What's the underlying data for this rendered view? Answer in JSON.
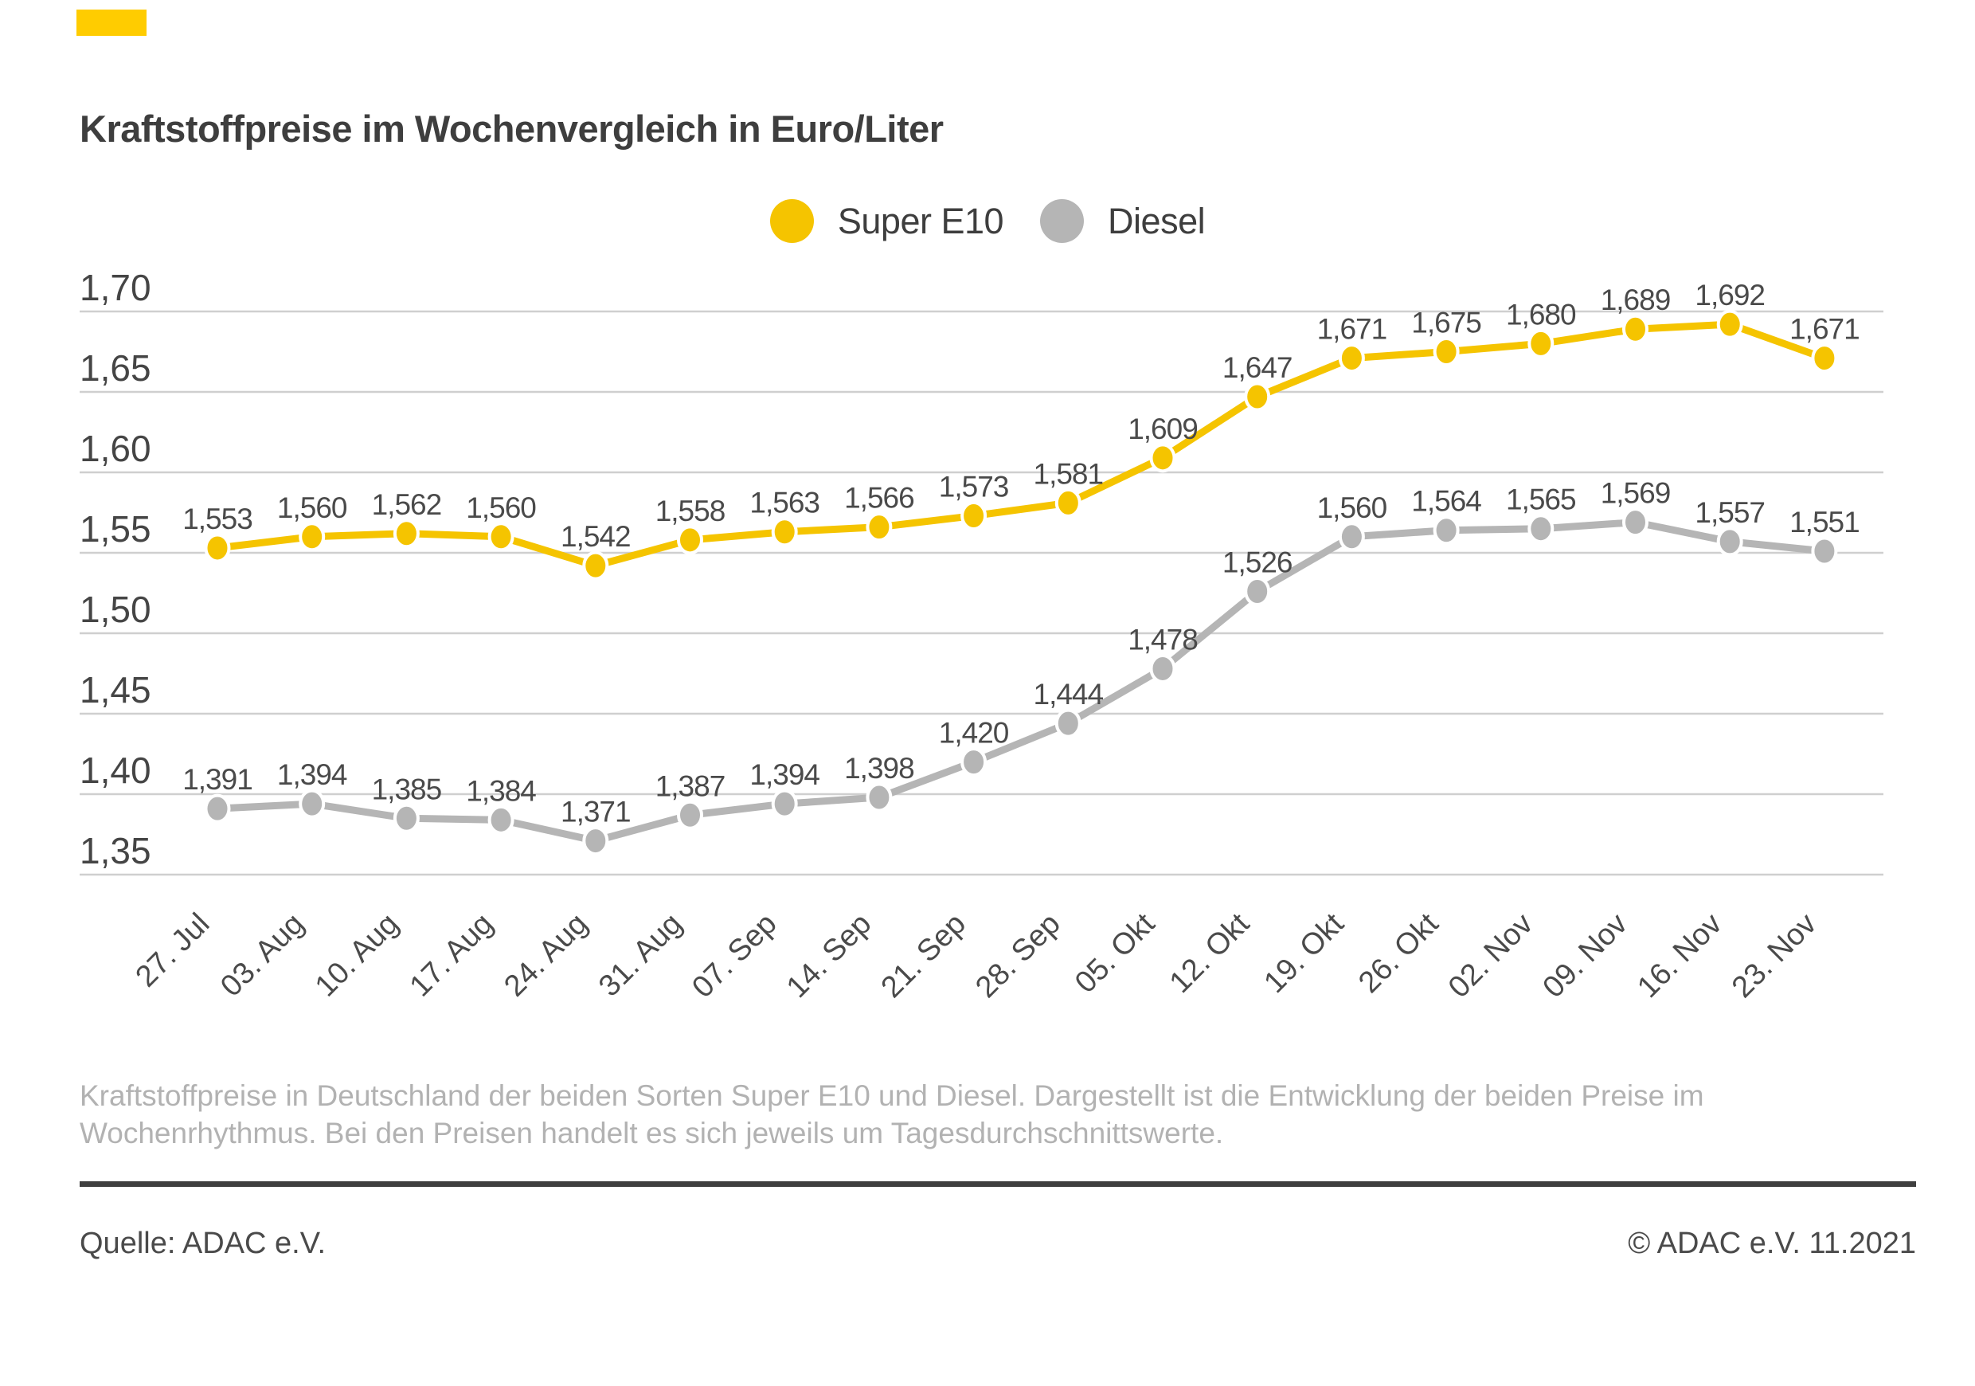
{
  "accent_bar_color": "#FFCC00",
  "header": {
    "title": "Kraftstoffpreise im Wochenvergleich in Euro/Liter"
  },
  "legend": [
    {
      "label": "Super E10",
      "color": "#F5C400"
    },
    {
      "label": "Diesel",
      "color": "#B5B5B5"
    }
  ],
  "chart_data": {
    "type": "line",
    "title": "Kraftstoffpreise im Wochenvergleich in Euro/Liter",
    "categories": [
      "27. Jul",
      "03. Aug",
      "10. Aug",
      "17. Aug",
      "24. Aug",
      "31. Aug",
      "07. Sep",
      "14. Sep",
      "21. Sep",
      "28. Sep",
      "05. Okt",
      "12. Okt",
      "19. Okt",
      "26. Okt",
      "02. Nov",
      "09. Nov",
      "16. Nov",
      "23. Nov"
    ],
    "series": [
      {
        "name": "Super E10",
        "color": "#F5C400",
        "values": [
          1.553,
          1.56,
          1.562,
          1.56,
          1.542,
          1.558,
          1.563,
          1.566,
          1.573,
          1.581,
          1.609,
          1.647,
          1.671,
          1.675,
          1.68,
          1.689,
          1.692,
          1.671
        ]
      },
      {
        "name": "Diesel",
        "color": "#B5B5B5",
        "values": [
          1.391,
          1.394,
          1.385,
          1.384,
          1.371,
          1.387,
          1.394,
          1.398,
          1.42,
          1.444,
          1.478,
          1.526,
          1.56,
          1.564,
          1.565,
          1.569,
          1.557,
          1.551
        ]
      }
    ],
    "ylim": [
      1.35,
      1.7
    ],
    "ytick_step": 0.05,
    "yticks": [
      "1,70",
      "1,65",
      "1,60",
      "1,55",
      "1,50",
      "1,45",
      "1,40",
      "1,35"
    ],
    "decimal_separator": ",",
    "value_labels": true,
    "grid": true,
    "legend_position": "top",
    "xlabel": "",
    "ylabel": "Euro/Liter",
    "colors": {
      "gridline": "#cfcfcf",
      "tick_text": "#454545",
      "value_label_text": "#4a4a4a",
      "date_label_text": "#4a4a4a",
      "marker_halo": "#ffffff"
    }
  },
  "footer": {
    "line1": "Kraftstoffpreise in Deutschland der beiden Sorten Super E10 und Diesel. Dargestellt ist die Entwicklung der beiden Preise im",
    "line2": "Wochenrhythmus. Bei den Preisen handelt es sich jeweils um Tagesdurchschnittswerte."
  },
  "source": {
    "left": "Quelle: ADAC e.V.",
    "right": "© ADAC e.V. 11.2021"
  }
}
